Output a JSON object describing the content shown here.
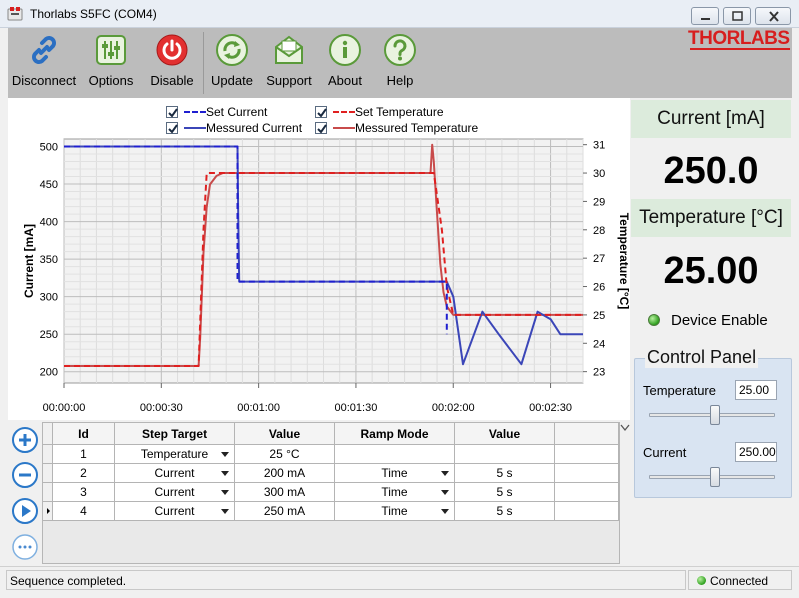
{
  "window": {
    "title": "Thorlabs S5FC (COM4)"
  },
  "toolbar": {
    "disconnect": "Disconnect",
    "options": "Options",
    "disable": "Disable",
    "update": "Update",
    "support": "Support",
    "about": "About",
    "help": "Help",
    "logo": "THORLABS"
  },
  "legend": {
    "set_current": "Set Current",
    "measured_current": "Messured Current",
    "set_temperature": "Set Temperature",
    "measured_temperature": "Messured Temperature"
  },
  "chart_data": {
    "type": "line",
    "ylabel_left": "Current [mA]",
    "ylabel_right": "Temperature [°C]",
    "xlabel": "",
    "x_ticks": [
      "00:00:00",
      "00:00:30",
      "00:01:00",
      "00:01:30",
      "00:02:00",
      "00:02:30"
    ],
    "y_left_ticks": [
      "500",
      "450",
      "400",
      "350",
      "300",
      "250",
      "200"
    ],
    "y_right_ticks": [
      "31",
      "30",
      "29",
      "28",
      "27",
      "26",
      "25",
      "24",
      "23"
    ],
    "xlim": [
      0,
      160
    ],
    "ylim_left": [
      185,
      510
    ],
    "ylim_right": [
      22.6,
      31.2
    ],
    "grid": true,
    "series": [
      {
        "name": "Set Current",
        "axis": "left",
        "color": "#1f1fd0",
        "style": "dashed",
        "x": [
          0,
          53.5,
          53.5,
          118,
          118
        ],
        "y": [
          500,
          500,
          320,
          320,
          250
        ]
      },
      {
        "name": "Messured Current",
        "axis": "left",
        "color": "#3b46b8",
        "style": "solid",
        "x": [
          0,
          53.5,
          53.7,
          54,
          118,
          120,
          123,
          129,
          134,
          141,
          146,
          150,
          153,
          160
        ],
        "y": [
          500,
          500,
          410,
          320,
          320,
          300,
          210,
          280,
          250,
          210,
          280,
          270,
          250,
          250
        ]
      },
      {
        "name": "Set Temperature",
        "axis": "right",
        "color": "#e02020",
        "style": "dashed",
        "x": [
          0,
          41.5,
          43,
          44,
          113.5,
          114,
          116.5,
          118,
          120,
          160
        ],
        "y": [
          23.2,
          23.2,
          28,
          30,
          30,
          30,
          28,
          26,
          25,
          25
        ]
      },
      {
        "name": "Messured Temperature",
        "axis": "right",
        "color": "#c84b4b",
        "style": "solid",
        "x": [
          0,
          41.5,
          42,
          43,
          44,
          45,
          47,
          49,
          51,
          60,
          113,
          113.5,
          114,
          115,
          116,
          117,
          118,
          120,
          123,
          130,
          160
        ],
        "y": [
          23.2,
          23.2,
          24.2,
          27.2,
          28.8,
          29.6,
          29.9,
          30,
          30,
          30,
          30,
          31,
          30.4,
          28.6,
          26.8,
          25.8,
          25.3,
          25,
          25,
          25,
          25
        ]
      }
    ]
  },
  "readouts": {
    "current_label": "Current [mA]",
    "current_value": "250.0",
    "temperature_label": "Temperature [°C]",
    "temperature_value": "25.00",
    "device_enable": "Device Enable"
  },
  "control_panel": {
    "title": "Control Panel",
    "temperature_label": "Temperature",
    "temperature_value": "25.00",
    "temperature_slider_fraction": 0.52,
    "current_label": "Current",
    "current_value": "250.00",
    "current_slider_fraction": 0.52
  },
  "table": {
    "headers": [
      "Id",
      "Step Target",
      "Value",
      "Ramp Mode",
      "Value"
    ],
    "rows": [
      {
        "id": "1",
        "target": "Temperature",
        "value": "25 °C",
        "ramp": "",
        "ramp_value": ""
      },
      {
        "id": "2",
        "target": "Current",
        "value": "200 mA",
        "ramp": "Time",
        "ramp_value": "5 s"
      },
      {
        "id": "3",
        "target": "Current",
        "value": "300 mA",
        "ramp": "Time",
        "ramp_value": "5 s"
      },
      {
        "id": "4",
        "target": "Current",
        "value": "250 mA",
        "ramp": "Time",
        "ramp_value": "5 s"
      }
    ]
  },
  "status": {
    "message": "Sequence completed.",
    "connection": "Connected"
  }
}
